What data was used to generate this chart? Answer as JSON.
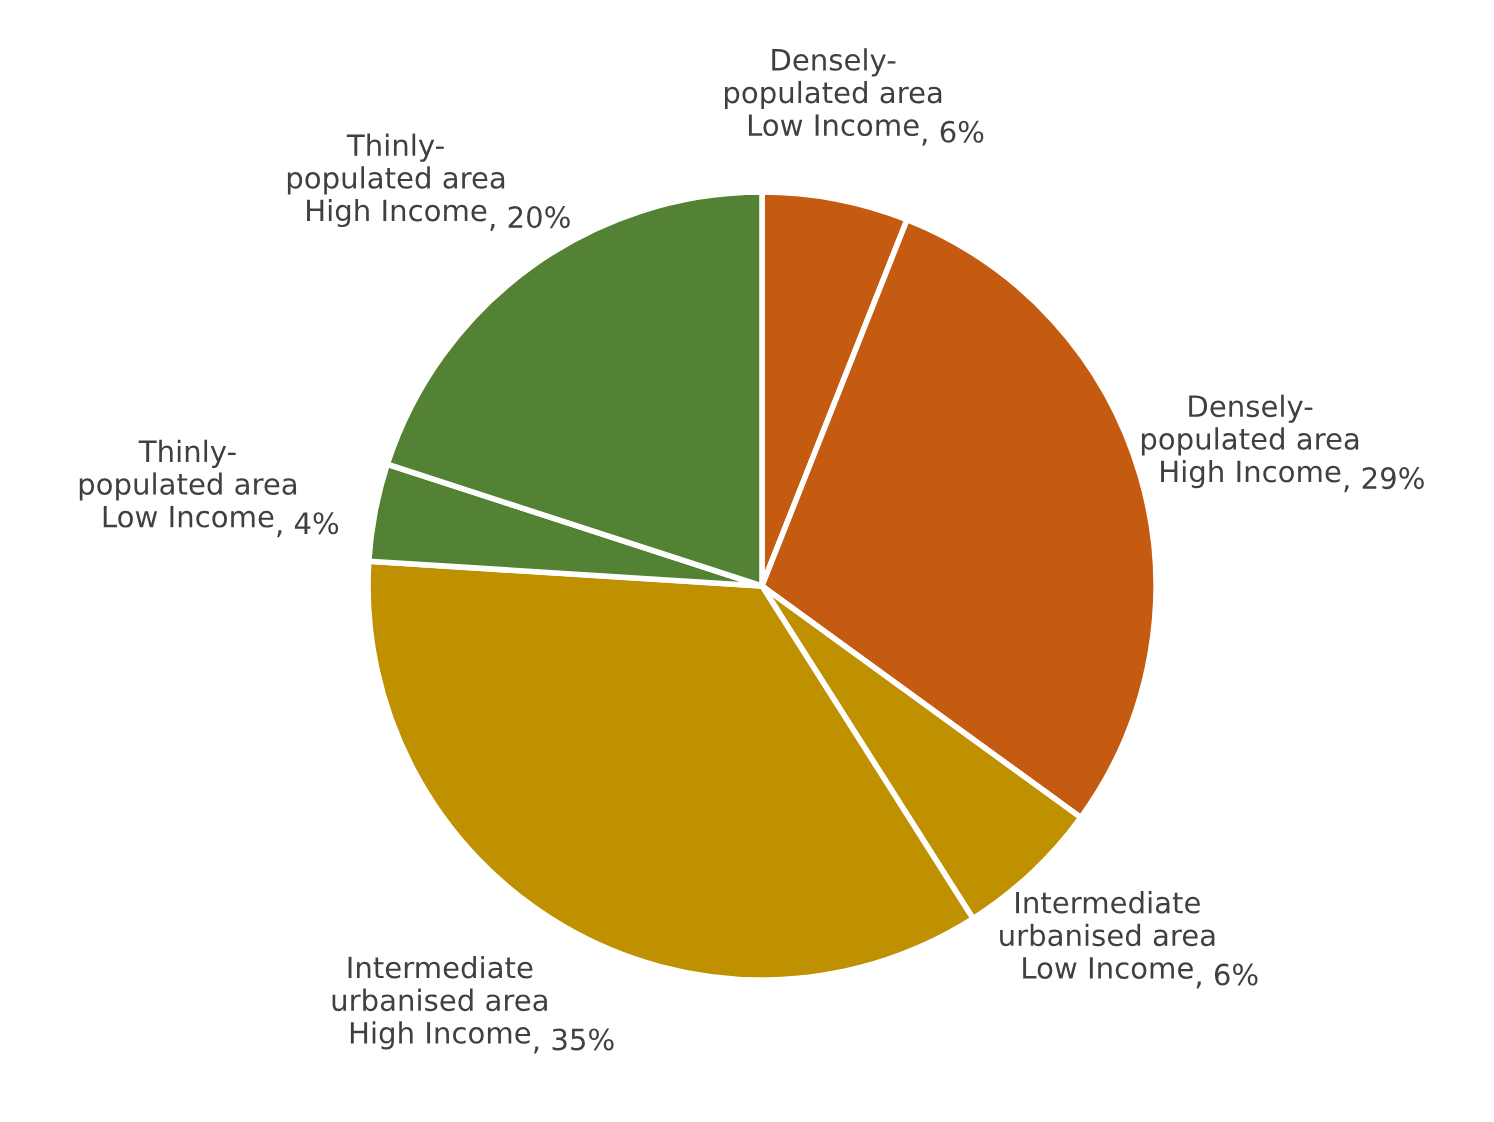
{
  "chart_data": {
    "type": "pie",
    "categories": [
      "Densely-\npopulated area\nLow Income",
      "Densely-\npopulated area\nHigh Income",
      "Intermediate\nurbanised area\nLow Income",
      "Intermediate\nurbanised area\nHigh Income",
      "Thinly-\npopulated area\nLow Income",
      "Thinly-\npopulated area\nHigh Income"
    ],
    "values": [
      6,
      29,
      6,
      35,
      4,
      20
    ],
    "value_labels": [
      ", 6%",
      ", 29%",
      ", 6%",
      ", 35%",
      ", 4%",
      ", 20%"
    ],
    "colors": [
      "#c55a11",
      "#c55a11",
      "#bf9000",
      "#bf9000",
      "#548235",
      "#548235"
    ]
  }
}
